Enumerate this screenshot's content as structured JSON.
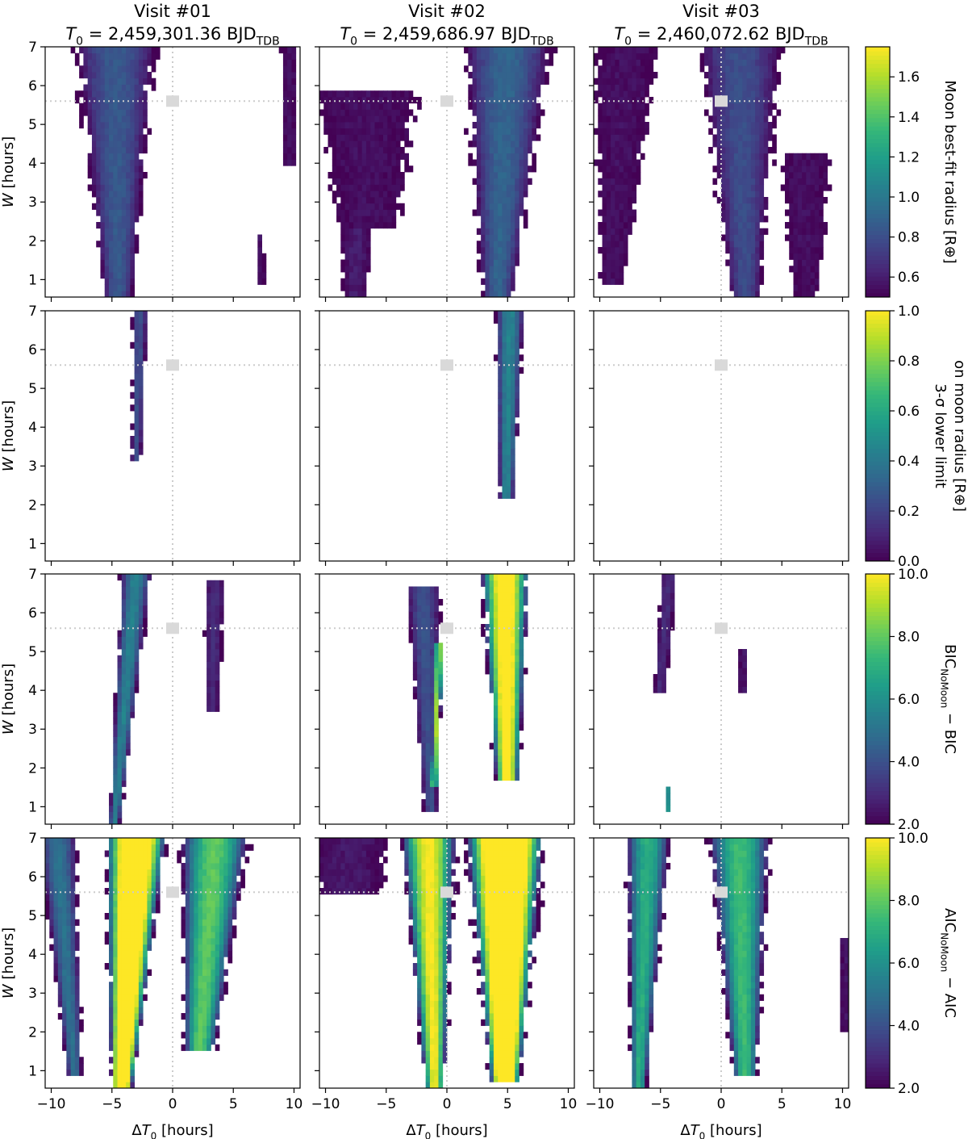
{
  "colormap": [
    "#440154",
    "#482878",
    "#3e4989",
    "#31688e",
    "#26828e",
    "#1f9e89",
    "#35b779",
    "#6ece58",
    "#b5de2b",
    "#fde725"
  ],
  "colors": {
    "marker": "#d9d9d9",
    "guide": "#cccccc",
    "axis": "#000000"
  },
  "chart_data": {
    "type": "heatmap",
    "columns": [
      {
        "title_line1": "Visit #01",
        "title_pre": "T",
        "title_sub": "0",
        "title_value": " = 2,459,301.36 BJD",
        "title_unit_sub": "TDB"
      },
      {
        "title_line1": "Visit #02",
        "title_pre": "T",
        "title_sub": "0",
        "title_value": " = 2,459,686.97 BJD",
        "title_unit_sub": "TDB"
      },
      {
        "title_line1": "Visit #03",
        "title_pre": "T",
        "title_sub": "0",
        "title_value": " = 2,460,072.62 BJD",
        "title_unit_sub": "TDB"
      }
    ],
    "x_axis": {
      "label_pre": "ΔT",
      "label_sub": "0",
      "label_post": " [hours]",
      "range": [
        -10.5,
        10.5
      ],
      "ticks": [
        -10,
        -5,
        0,
        5,
        10
      ],
      "tick_labels": [
        "−10",
        "−5",
        "0",
        "5",
        "10"
      ]
    },
    "y_axis": {
      "label_pre": "W",
      "label_post": " [hours]",
      "range": [
        0.55,
        7.0
      ],
      "ticks": [
        1,
        2,
        3,
        4,
        5,
        6,
        7
      ],
      "tick_labels": [
        "1",
        "2",
        "3",
        "4",
        "5",
        "6",
        "7"
      ]
    },
    "reference_point": {
      "x": 0,
      "y": 5.6
    },
    "rows": [
      {
        "name": "radius",
        "colorbar": {
          "label_lines": [
            "Moon best-fit radius [R⊕]"
          ],
          "range": [
            0.5,
            1.75
          ],
          "ticks": [
            0.6,
            0.8,
            1.0,
            1.2,
            1.4,
            1.6
          ],
          "tick_labels": [
            "0.6",
            "0.8",
            "1.0",
            "1.2",
            "1.4",
            "1.6"
          ]
        },
        "bands": [
          [
            {
              "x_top": -4.7,
              "x_bot": -4.5,
              "width": 6.4,
              "peak": 0.85,
              "y_min": 0.55,
              "y_max": 7.0
            },
            {
              "x_top": 9.6,
              "x_bot": 9.6,
              "width": 1.2,
              "peak": 0.55,
              "y_min": 4.0,
              "y_max": 7.0
            },
            {
              "x_top": 6.8,
              "x_bot": 7.3,
              "width": 0.9,
              "peak": 0.55,
              "y_min": 0.8,
              "y_max": 2.2
            }
          ],
          [
            {
              "x_top": -6.5,
              "x_bot": -6.5,
              "width": 9.0,
              "peak": 0.55,
              "y_min": 2.4,
              "y_max": 5.9
            },
            {
              "x_top": 5.0,
              "x_bot": 4.2,
              "width": 7.0,
              "peak": 0.9,
              "y_min": 0.55,
              "y_max": 7.0
            },
            {
              "x_top": -7.5,
              "x_bot": -7.5,
              "width": 5.0,
              "peak": 0.6,
              "y_min": 0.55,
              "y_max": 2.4
            }
          ],
          [
            {
              "x_top": -7.8,
              "x_bot": -9.0,
              "width": 5.0,
              "peak": 0.55,
              "y_min": 0.9,
              "y_max": 7.0
            },
            {
              "x_top": 1.5,
              "x_bot": 2.0,
              "width": 6.5,
              "peak": 0.8,
              "y_min": 0.55,
              "y_max": 7.0
            },
            {
              "x_top": 7.0,
              "x_bot": 7.0,
              "width": 5.5,
              "peak": 0.55,
              "y_min": 0.55,
              "y_max": 4.2
            }
          ]
        ]
      },
      {
        "name": "lower-limit",
        "colorbar": {
          "label_lines": [
            "3-σ lower limit",
            "on moon radius [R⊕]"
          ],
          "range": [
            0.0,
            1.0
          ],
          "ticks": [
            0.0,
            0.2,
            0.4,
            0.6,
            0.8,
            1.0
          ],
          "tick_labels": [
            "0.0",
            "0.2",
            "0.4",
            "0.6",
            "0.8",
            "1.0"
          ]
        },
        "bands": [
          [
            {
              "x_top": -2.7,
              "x_bot": -3.2,
              "width": 1.2,
              "peak": 0.25,
              "y_min": 3.1,
              "y_max": 7.0
            }
          ],
          [
            {
              "x_top": 5.2,
              "x_bot": 4.8,
              "width": 2.3,
              "peak": 0.45,
              "y_min": 2.1,
              "y_max": 7.0
            }
          ],
          []
        ]
      },
      {
        "name": "bic",
        "colorbar": {
          "label_lines": [
            "BIC_NoMoon − BIC"
          ],
          "range": [
            2.0,
            10.0
          ],
          "ticks": [
            2.0,
            4.0,
            6.0,
            8.0,
            10.0
          ],
          "tick_labels": [
            "2.0",
            "4.0",
            "6.0",
            "8.0",
            "10.0"
          ]
        },
        "bands": [
          [
            {
              "x_top": -3.0,
              "x_bot": -4.8,
              "width": 2.4,
              "peak": 5.5,
              "y_min": 0.6,
              "y_max": 7.0
            },
            {
              "x_top": 3.5,
              "x_bot": 3.0,
              "width": 1.6,
              "peak": 3.0,
              "y_min": 3.5,
              "y_max": 6.9
            }
          ],
          [
            {
              "x_top": -2.0,
              "x_bot": -1.3,
              "width": 2.8,
              "peak": 4.0,
              "y_min": 0.9,
              "y_max": 6.6
            },
            {
              "x_top": -0.4,
              "x_bot": -1.2,
              "width": 1.0,
              "peak": 9.0,
              "y_min": 1.5,
              "y_max": 5.2
            },
            {
              "x_top": 4.8,
              "x_bot": 5.0,
              "width": 4.0,
              "peak": 11.0,
              "y_min": 1.7,
              "y_max": 7.0
            }
          ],
          [
            {
              "x_top": -4.3,
              "x_bot": -5.8,
              "width": 1.3,
              "peak": 3.0,
              "y_min": 4.0,
              "y_max": 7.0
            },
            {
              "x_top": 1.8,
              "x_bot": 1.8,
              "width": 0.5,
              "peak": 2.5,
              "y_min": 3.9,
              "y_max": 5.0
            },
            {
              "x_top": -4.4,
              "x_bot": -4.4,
              "width": 0.4,
              "peak": 6.0,
              "y_min": 0.8,
              "y_max": 1.5
            }
          ]
        ]
      },
      {
        "name": "aic",
        "colorbar": {
          "label_lines": [
            "AIC_NoMoon − AIC"
          ],
          "range": [
            2.0,
            10.0
          ],
          "ticks": [
            2.0,
            4.0,
            6.0,
            8.0,
            10.0
          ],
          "tick_labels": [
            "2.0",
            "4.0",
            "6.0",
            "8.0",
            "10.0"
          ]
        },
        "bands": [
          [
            {
              "x_top": -9.5,
              "x_bot": -8.0,
              "width": 3.0,
              "peak": 5.0,
              "y_min": 0.9,
              "y_max": 7.0
            },
            {
              "x_top": -3.0,
              "x_bot": -4.2,
              "width": 5.0,
              "peak": 13.0,
              "y_min": 0.55,
              "y_max": 7.0
            },
            {
              "x_top": 3.5,
              "x_bot": 2.0,
              "width": 5.5,
              "peak": 8.0,
              "y_min": 1.5,
              "y_max": 7.0
            }
          ],
          [
            {
              "x_top": -8.0,
              "x_bot": -8.0,
              "width": 6.0,
              "peak": 2.5,
              "y_min": 5.6,
              "y_max": 7.0
            },
            {
              "x_top": -1.5,
              "x_bot": -1.0,
              "width": 4.5,
              "peak": 10.0,
              "y_min": 0.55,
              "y_max": 7.0
            },
            {
              "x_top": 4.8,
              "x_bot": 4.8,
              "width": 6.5,
              "peak": 14.0,
              "y_min": 0.7,
              "y_max": 7.0
            }
          ],
          [
            {
              "x_top": -6.0,
              "x_bot": -6.8,
              "width": 3.5,
              "peak": 7.0,
              "y_min": 0.55,
              "y_max": 7.0
            },
            {
              "x_top": 1.5,
              "x_bot": 2.0,
              "width": 5.0,
              "peak": 7.5,
              "y_min": 0.8,
              "y_max": 7.0
            },
            {
              "x_top": 10.2,
              "x_bot": 10.2,
              "width": 0.8,
              "peak": 2.5,
              "y_min": 2.0,
              "y_max": 4.5
            }
          ]
        ]
      }
    ]
  }
}
